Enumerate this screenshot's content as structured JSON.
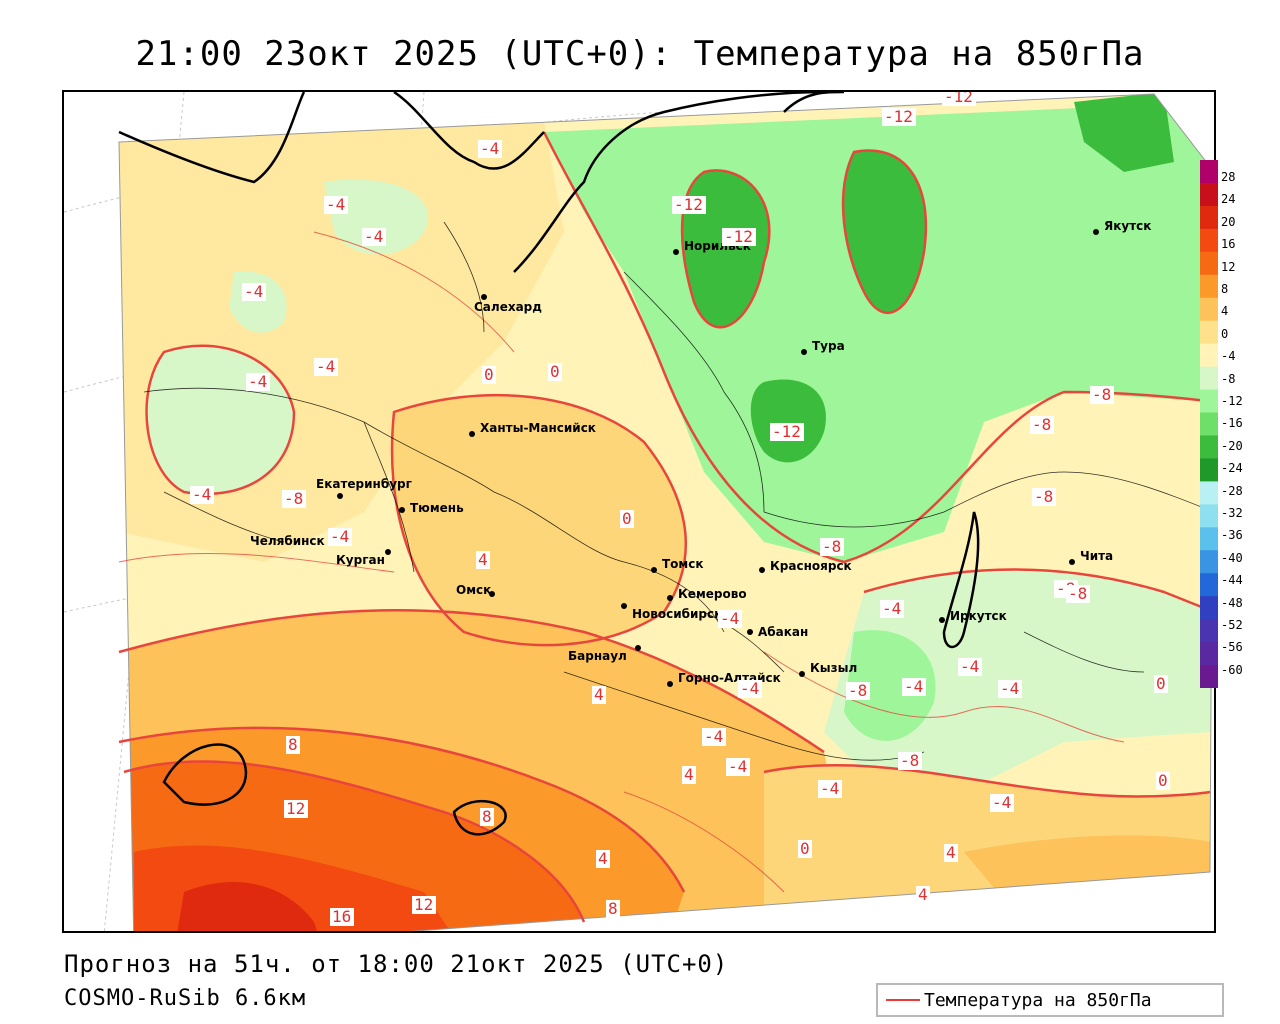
{
  "title": "21:00 23окт 2025 (UTC+0): Температура на 850гПа",
  "forecast_line": "Прогноз на 51ч. от 18:00 21окт 2025 (UTC+0)",
  "model_line": "COSMO-RuSib 6.6км",
  "legend_label": "Температура на 850гПа",
  "colorbar": {
    "ticks": [
      "28",
      "24",
      "20",
      "16",
      "12",
      "8",
      "4",
      "0",
      "-4",
      "-8",
      "-12",
      "-16",
      "-20",
      "-24",
      "-28",
      "-32",
      "-36",
      "-40",
      "-44",
      "-48",
      "-52",
      "-56",
      "-60"
    ],
    "colors": [
      "#b0006a",
      "#c8101a",
      "#e02a10",
      "#f24a10",
      "#f76a14",
      "#fb9a2a",
      "#fdc25a",
      "#ffe18c",
      "#fff3b8",
      "#d8f7c8",
      "#9ff59a",
      "#6ee06a",
      "#3cbc3c",
      "#1f9a2a",
      "#b8f0f4",
      "#8ee0f0",
      "#5cc0ec",
      "#3a94e4",
      "#2268d8",
      "#3040c0",
      "#4a34b0",
      "#5a28a0",
      "#6a1a90"
    ]
  },
  "cities": [
    {
      "name": "Якутск"
    },
    {
      "name": "Норильск"
    },
    {
      "name": "Салехард"
    },
    {
      "name": "Тура"
    },
    {
      "name": "Ханты-Мансийск"
    },
    {
      "name": "Екатеринбург"
    },
    {
      "name": "Тюмень"
    },
    {
      "name": "Челябинск"
    },
    {
      "name": "Курган"
    },
    {
      "name": "Омск"
    },
    {
      "name": "Новосибирск"
    },
    {
      "name": "Томск"
    },
    {
      "name": "Кемерово"
    },
    {
      "name": "Красноярск"
    },
    {
      "name": "Абакан"
    },
    {
      "name": "Иркутск"
    },
    {
      "name": "Чита"
    },
    {
      "name": "Барнаул"
    },
    {
      "name": "Горно-Алтайск"
    },
    {
      "name": "Кызыл"
    }
  ],
  "contour_labels": [
    "-12",
    "-12",
    "-4",
    "-12",
    "-12",
    "-4",
    "-4",
    "-4",
    "-4",
    "-4",
    "0",
    "0",
    "-12",
    "-8",
    "-8",
    "-8",
    "-4",
    "-8",
    "-4",
    "-8",
    "-4",
    "-8",
    "-4",
    "-4",
    "-4",
    "0",
    "0",
    "4",
    "8",
    "12",
    "8",
    "16",
    "12",
    "8",
    "4",
    "4",
    "4",
    "-4",
    "-4",
    "0",
    "4",
    "0",
    "4",
    "-4",
    "-4",
    "-8",
    "-4",
    "-4",
    "-8",
    "-8"
  ]
}
